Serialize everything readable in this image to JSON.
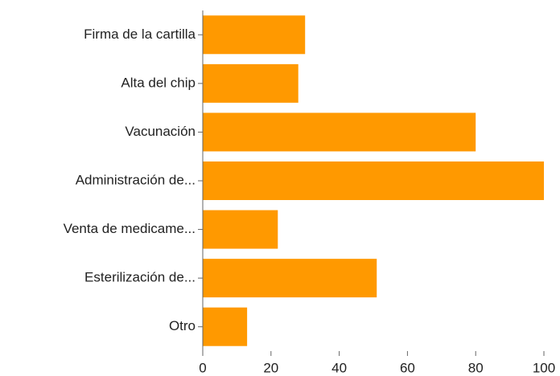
{
  "chart_data": {
    "type": "bar",
    "orientation": "horizontal",
    "categories": [
      "Firma de la cartilla",
      "Alta del chip",
      "Vacunación",
      "Administración de...",
      "Venta de medicame...",
      "Esterilización de...",
      "Otro"
    ],
    "values": [
      30,
      28,
      80,
      100,
      22,
      51,
      13
    ],
    "color": "#ff9900",
    "xlim": [
      0,
      100
    ],
    "xticks": [
      0,
      20,
      40,
      60,
      80,
      100
    ],
    "grid": false
  }
}
